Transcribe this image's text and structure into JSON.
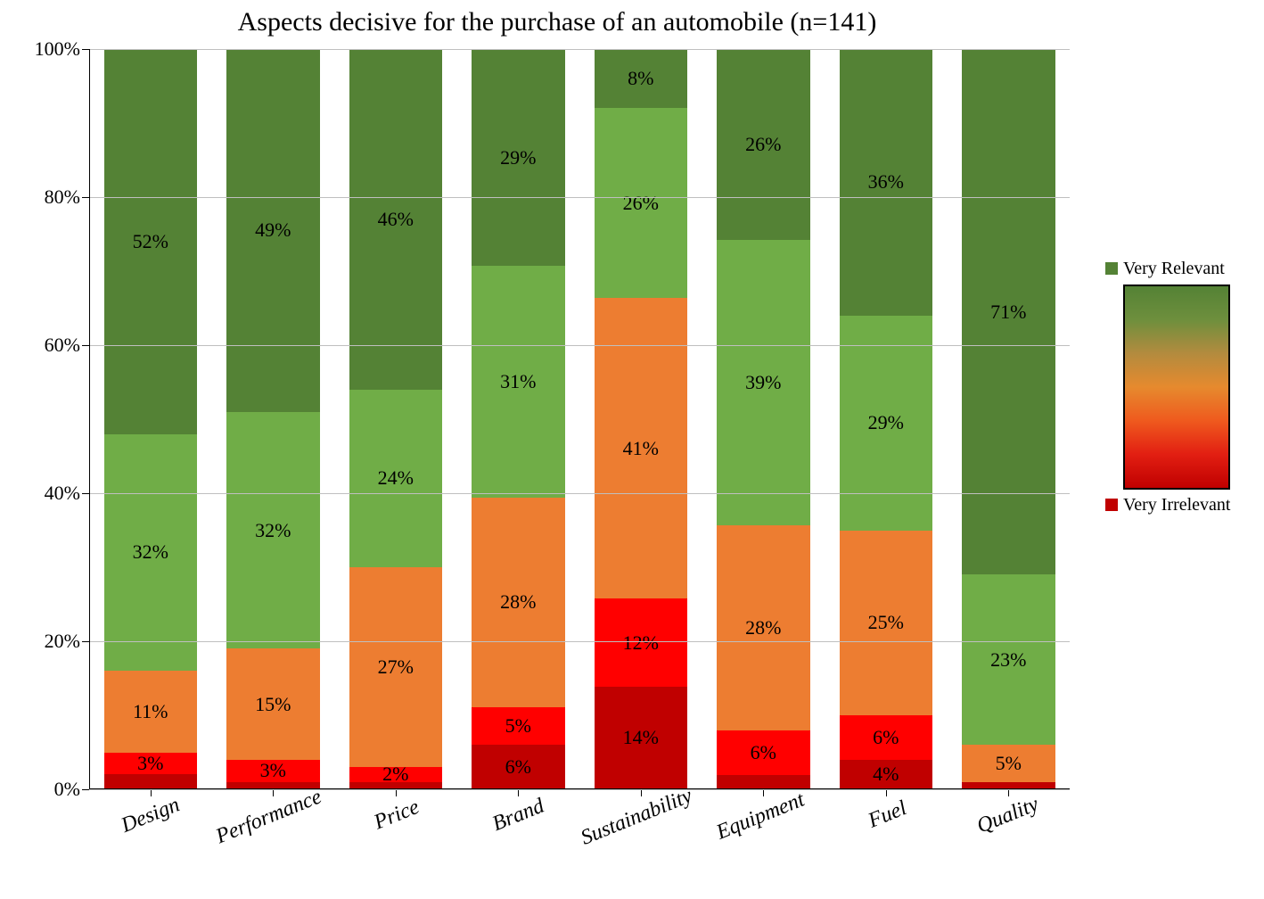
{
  "chart": {
    "type": "stacked_bar_100pct",
    "title": "Aspects decisive for the purchase of an automobile (n=141)",
    "title_fontsize": 30,
    "background_color": "#ffffff",
    "grid_color": "#bfbfbf",
    "axis_color": "#000000",
    "y_axis": {
      "min": 0,
      "max": 100,
      "tick_step": 20,
      "labels": [
        "0%",
        "20%",
        "40%",
        "60%",
        "80%",
        "100%"
      ],
      "label_fontsize": 22
    },
    "categories": [
      "Design",
      "Performance",
      "Price",
      "Brand",
      "Sustainability",
      "Equipment",
      "Fuel",
      "Quality"
    ],
    "x_label_fontsize": 24,
    "x_label_rotation_deg": -22,
    "series_order_bottom_to_top": [
      "very_irrelevant",
      "irrelevant",
      "neutral",
      "relevant",
      "very_relevant"
    ],
    "colors": {
      "very_irrelevant": "#c00000",
      "irrelevant": "#ff0000",
      "neutral": "#ed7d31",
      "relevant": "#70ad47",
      "very_relevant": "#548235"
    },
    "data_label_fontsize": 22,
    "data": {
      "Design": {
        "very_irrelevant": 2,
        "irrelevant": 3,
        "neutral": 11,
        "relevant": 32,
        "very_relevant": 52,
        "labels": {
          "very_irrelevant": "",
          "irrelevant": "3%",
          "neutral": "11%",
          "relevant": "32%",
          "very_relevant": "52%"
        }
      },
      "Performance": {
        "very_irrelevant": 1,
        "irrelevant": 3,
        "neutral": 15,
        "relevant": 32,
        "very_relevant": 49,
        "labels": {
          "very_irrelevant": "",
          "irrelevant": "3%",
          "neutral": "15%",
          "relevant": "32%",
          "very_relevant": "49%"
        }
      },
      "Price": {
        "very_irrelevant": 1,
        "irrelevant": 2,
        "neutral": 27,
        "relevant": 24,
        "very_relevant": 46,
        "labels": {
          "very_irrelevant": "",
          "irrelevant": "2%",
          "neutral": "27%",
          "relevant": "24%",
          "very_relevant": "46%"
        }
      },
      "Brand": {
        "very_irrelevant": 6,
        "irrelevant": 5,
        "neutral": 28,
        "relevant": 31,
        "very_relevant": 29,
        "labels": {
          "very_irrelevant": "6%",
          "irrelevant": "5%",
          "neutral": "28%",
          "relevant": "31%",
          "very_relevant": "29%"
        }
      },
      "Sustainability": {
        "very_irrelevant": 14,
        "irrelevant": 12,
        "neutral": 41,
        "relevant": 26,
        "very_relevant": 8,
        "labels": {
          "very_irrelevant": "14%",
          "irrelevant": "12%",
          "neutral": "41%",
          "relevant": "26%",
          "very_relevant": "8%"
        }
      },
      "Equipment": {
        "very_irrelevant": 2,
        "irrelevant": 6,
        "neutral": 28,
        "relevant": 39,
        "very_relevant": 26,
        "labels": {
          "very_irrelevant": "",
          "irrelevant": "6%",
          "neutral": "28%",
          "relevant": "39%",
          "very_relevant": "26%"
        }
      },
      "Fuel": {
        "very_irrelevant": 4,
        "irrelevant": 6,
        "neutral": 25,
        "relevant": 29,
        "very_relevant": 36,
        "labels": {
          "very_irrelevant": "4%",
          "irrelevant": "6%",
          "neutral": "25%",
          "relevant": "29%",
          "very_relevant": "36%"
        }
      },
      "Quality": {
        "very_irrelevant": 1,
        "irrelevant": 0,
        "neutral": 5,
        "relevant": 23,
        "very_relevant": 71,
        "labels": {
          "very_irrelevant": "",
          "irrelevant": "",
          "neutral": "5%",
          "relevant": "23%",
          "very_relevant": "71%"
        }
      }
    },
    "legend": {
      "top_label": "Very Relevant",
      "bottom_label": "Very Irrelevant",
      "swatch_top_color": "#548235",
      "swatch_bottom_color": "#c00000",
      "gradient_stops": [
        "#548235",
        "#6e8f3d",
        "#b38b3e",
        "#e68a2e",
        "#ef5a1e",
        "#e21f12",
        "#c00000"
      ],
      "label_fontsize": 20
    }
  }
}
